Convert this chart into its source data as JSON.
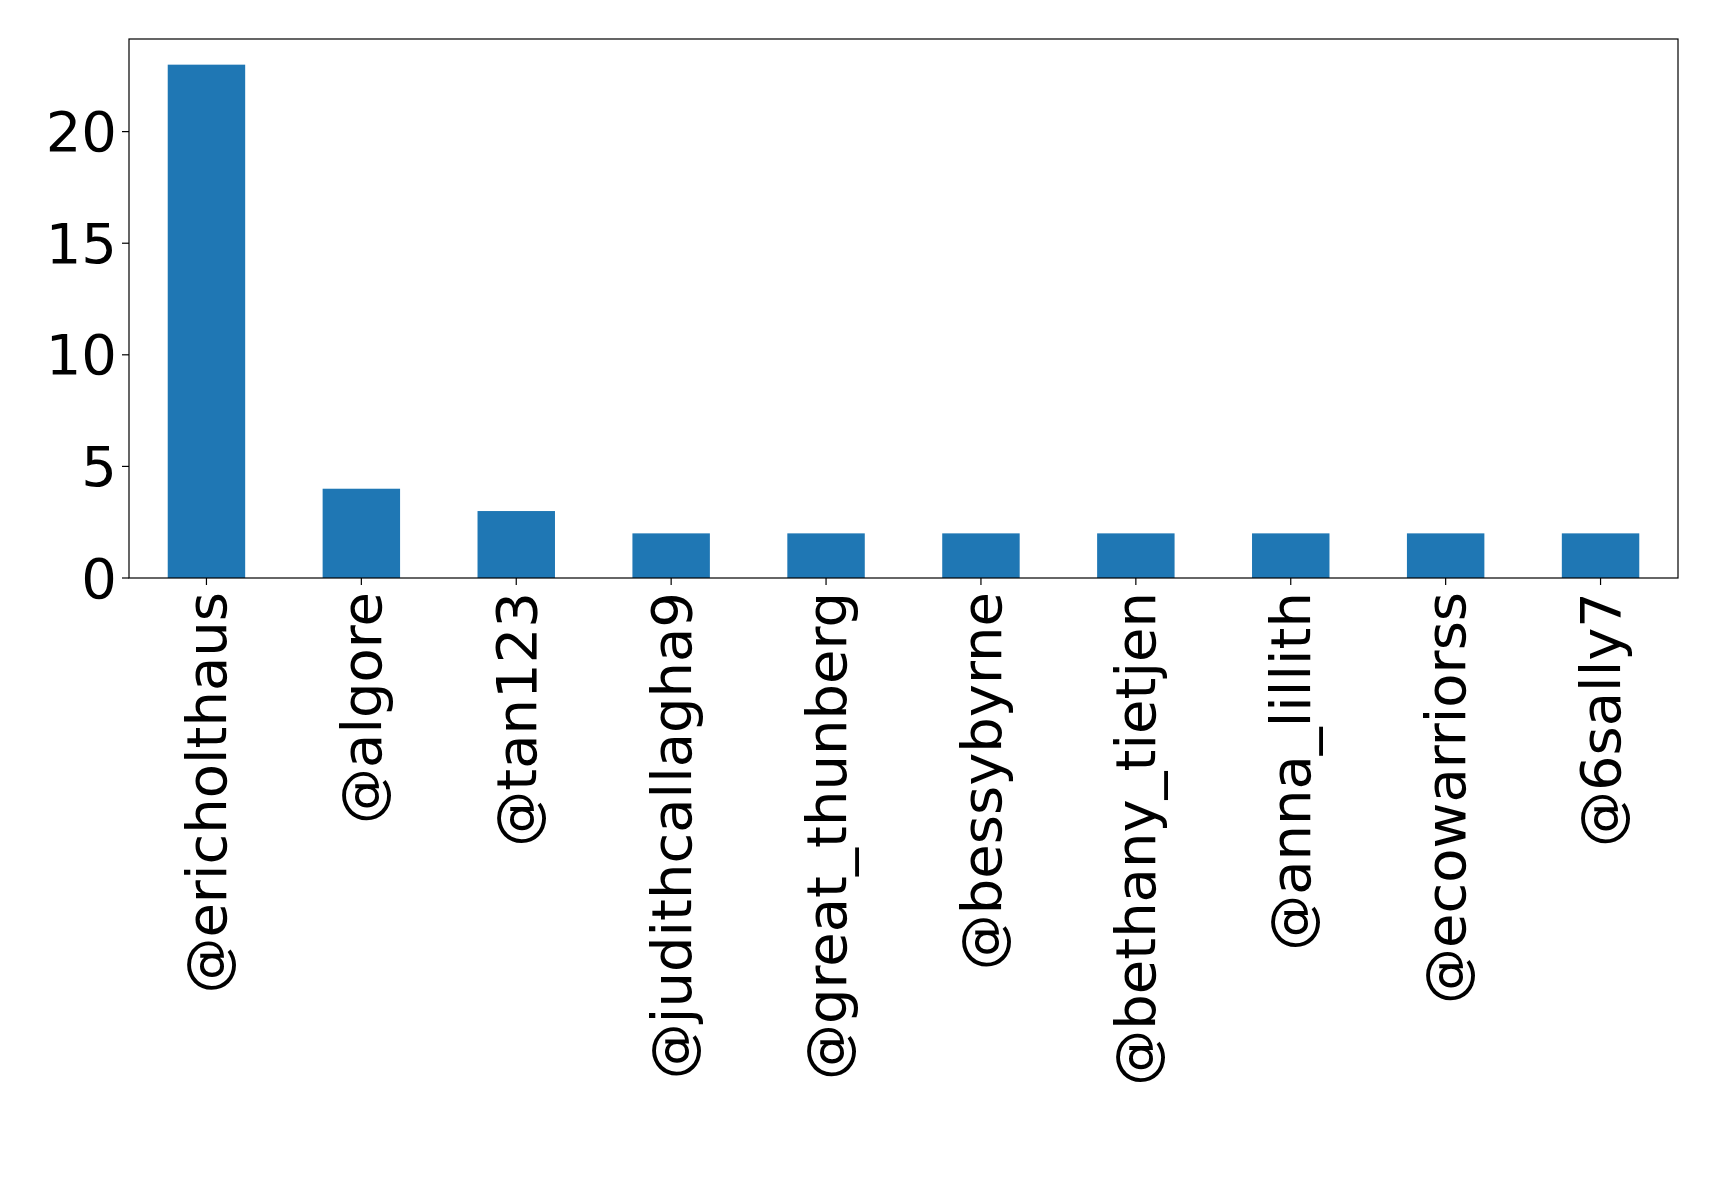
{
  "chart_data": {
    "type": "bar",
    "categories": [
      "@ericholthaus",
      "@algore",
      "@tan123",
      "@judithcallagha9",
      "@great_thunberg",
      "@bessybyrne",
      "@bethany_tietjen",
      "@anna_lillith",
      "@ecowarriorss",
      "@6sally7"
    ],
    "values": [
      23,
      4,
      3,
      2,
      2,
      2,
      2,
      2,
      2,
      2
    ],
    "color": "#1f77b4",
    "ylim": [
      0,
      24.15
    ],
    "yticks": [
      0,
      5,
      10,
      15,
      20
    ],
    "grid": false
  }
}
